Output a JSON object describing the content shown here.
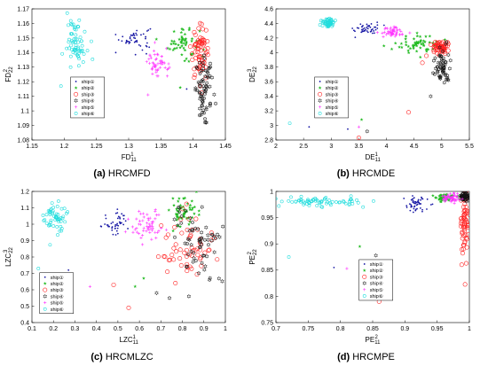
{
  "series_styles": [
    {
      "name": "ship①",
      "color": "#1a1aa6",
      "marker": "dot"
    },
    {
      "name": "ship②",
      "color": "#22bb22",
      "marker": "star"
    },
    {
      "name": "ship③",
      "color": "#ff2222",
      "marker": "circle"
    },
    {
      "name": "ship④",
      "color": "#111111",
      "marker": "hexagram"
    },
    {
      "name": "ship⑤",
      "color": "#ff33ff",
      "marker": "plus"
    },
    {
      "name": "ship⑥",
      "color": "#22dddd",
      "marker": "circle-small"
    }
  ],
  "chart_data": [
    {
      "type": "scatter",
      "caption_letter": "(a)",
      "caption_name": "HRCMFD",
      "xlabel": "FD",
      "xlabel_sub": "11",
      "xlabel_sup": "1",
      "ylabel": "FD",
      "ylabel_sub": "22",
      "ylabel_sup": "2",
      "xlim": [
        1.15,
        1.45
      ],
      "ylim": [
        1.08,
        1.17
      ],
      "xticks": [
        "1.15",
        "1.2",
        "1.25",
        "1.3",
        "1.35",
        "1.4",
        "1.45"
      ],
      "yticks": [
        "1.08",
        "1.09",
        "1.1",
        "1.11",
        "1.12",
        "1.13",
        "1.14",
        "1.15",
        "1.16",
        "1.17"
      ],
      "legend_position": "center-left",
      "clusters": [
        {
          "series": "ship①",
          "cx": 1.31,
          "cy": 1.15,
          "sx": 0.012,
          "sy": 0.004,
          "n": 45,
          "outliers": [
            [
              1.28,
              1.14
            ],
            [
              1.39,
              1.115
            ]
          ]
        },
        {
          "series": "ship②",
          "cx": 1.385,
          "cy": 1.147,
          "sx": 0.012,
          "sy": 0.006,
          "n": 55,
          "outliers": [
            [
              1.38,
              1.116
            ]
          ]
        },
        {
          "series": "ship③",
          "cx": 1.41,
          "cy": 1.14,
          "sx": 0.007,
          "sy": 0.009,
          "n": 70,
          "outliers": []
        },
        {
          "series": "ship④",
          "cx": 1.418,
          "cy": 1.115,
          "sx": 0.007,
          "sy": 0.01,
          "n": 70,
          "outliers": [
            [
              1.42,
              1.092
            ],
            [
              1.435,
              1.105
            ],
            [
              1.41,
              1.097
            ]
          ]
        },
        {
          "series": "ship⑤",
          "cx": 1.345,
          "cy": 1.132,
          "sx": 0.008,
          "sy": 0.005,
          "n": 50,
          "outliers": [
            [
              1.33,
              1.111
            ]
          ]
        },
        {
          "series": "ship⑥",
          "cx": 1.22,
          "cy": 1.148,
          "sx": 0.008,
          "sy": 0.007,
          "n": 65,
          "outliers": [
            [
              1.195,
              1.117
            ],
            [
              1.21,
              1.13
            ]
          ]
        }
      ]
    },
    {
      "type": "scatter",
      "caption_letter": "(b)",
      "caption_name": "HRCMDE",
      "xlabel": "DE",
      "xlabel_sub": "11",
      "xlabel_sup": "1",
      "ylabel": "DE",
      "ylabel_sub": "22",
      "ylabel_sup": "3",
      "xlim": [
        2,
        5.5
      ],
      "ylim": [
        2.8,
        4.6
      ],
      "xticks": [
        "2",
        "2.5",
        "3",
        "3.5",
        "4",
        "4.5",
        "5",
        "5.5"
      ],
      "yticks": [
        "2.8",
        "3",
        "3.2",
        "3.4",
        "3.6",
        "3.8",
        "4",
        "4.2",
        "4.4",
        "4.6"
      ],
      "legend_position": "center-left",
      "clusters": [
        {
          "series": "ship①",
          "cx": 3.65,
          "cy": 4.33,
          "sx": 0.12,
          "sy": 0.04,
          "n": 45,
          "outliers": [
            [
              2.6,
              2.98
            ],
            [
              3.3,
              2.95
            ]
          ]
        },
        {
          "series": "ship②",
          "cx": 4.55,
          "cy": 4.12,
          "sx": 0.18,
          "sy": 0.07,
          "n": 55,
          "outliers": [
            [
              3.55,
              3.08
            ]
          ]
        },
        {
          "series": "ship③",
          "cx": 4.98,
          "cy": 4.07,
          "sx": 0.08,
          "sy": 0.05,
          "n": 60,
          "outliers": [
            [
              3.5,
              2.83
            ],
            [
              4.4,
              3.18
            ],
            [
              4.65,
              3.86
            ]
          ]
        },
        {
          "series": "ship④",
          "cx": 5.0,
          "cy": 3.82,
          "sx": 0.07,
          "sy": 0.12,
          "n": 60,
          "outliers": [
            [
              3.65,
              2.92
            ],
            [
              4.8,
              3.4
            ]
          ]
        },
        {
          "series": "ship⑤",
          "cx": 4.1,
          "cy": 4.28,
          "sx": 0.12,
          "sy": 0.04,
          "n": 50,
          "outliers": [
            [
              3.5,
              2.98
            ]
          ]
        },
        {
          "series": "ship⑥",
          "cx": 2.95,
          "cy": 4.41,
          "sx": 0.05,
          "sy": 0.03,
          "n": 60,
          "outliers": [
            [
              2.25,
              3.03
            ]
          ]
        }
      ]
    },
    {
      "type": "scatter",
      "caption_letter": "(c)",
      "caption_name": "HRCMLZC",
      "xlabel": "LZC",
      "xlabel_sub": "11",
      "xlabel_sup": "1",
      "ylabel": "LZC",
      "ylabel_sub": "22",
      "ylabel_sup": "3",
      "xlim": [
        0.1,
        1.0
      ],
      "ylim": [
        0.4,
        1.2
      ],
      "xticks": [
        "0.1",
        "0.2",
        "0.3",
        "0.4",
        "0.5",
        "0.6",
        "0.7",
        "0.8",
        "0.9",
        "1"
      ],
      "yticks": [
        "0.4",
        "0.5",
        "0.6",
        "0.7",
        "0.8",
        "0.9",
        "1",
        "1.1",
        "1.2"
      ],
      "legend_position": "bottom-left",
      "clusters": [
        {
          "series": "ship①",
          "cx": 0.5,
          "cy": 1.01,
          "sx": 0.04,
          "sy": 0.04,
          "n": 45,
          "outliers": [
            [
              0.27,
              0.72
            ]
          ]
        },
        {
          "series": "ship②",
          "cx": 0.8,
          "cy": 1.07,
          "sx": 0.035,
          "sy": 0.05,
          "n": 55,
          "outliers": [
            [
              0.58,
              0.62
            ],
            [
              0.62,
              0.67
            ]
          ]
        },
        {
          "series": "ship③",
          "cx": 0.83,
          "cy": 0.86,
          "sx": 0.06,
          "sy": 0.1,
          "n": 60,
          "outliers": [
            [
              0.55,
              0.49
            ],
            [
              0.48,
              0.63
            ],
            [
              0.73,
              0.71
            ]
          ]
        },
        {
          "series": "ship④",
          "cx": 0.87,
          "cy": 0.87,
          "sx": 0.06,
          "sy": 0.12,
          "n": 65,
          "outliers": [
            [
              0.83,
              0.56
            ],
            [
              0.74,
              0.55
            ],
            [
              0.68,
              0.58
            ]
          ]
        },
        {
          "series": "ship⑤",
          "cx": 0.64,
          "cy": 0.99,
          "sx": 0.04,
          "sy": 0.05,
          "n": 55,
          "outliers": [
            [
              0.37,
              0.62
            ]
          ]
        },
        {
          "series": "ship⑥",
          "cx": 0.21,
          "cy": 1.04,
          "sx": 0.025,
          "sy": 0.05,
          "n": 55,
          "outliers": [
            [
              0.13,
              0.73
            ]
          ]
        }
      ]
    },
    {
      "type": "scatter",
      "caption_letter": "(d)",
      "caption_name": "HRCMPE",
      "xlabel": "PE",
      "xlabel_sub": "11",
      "xlabel_sup": "2",
      "ylabel": "PE",
      "ylabel_sub": "22",
      "ylabel_sup": "2",
      "xlim": [
        0.7,
        1.0
      ],
      "ylim": [
        0.75,
        1.0
      ],
      "xticks": [
        "0.7",
        "0.75",
        "0.8",
        "0.85",
        "0.9",
        "0.95",
        "1"
      ],
      "yticks": [
        "0.75",
        "0.8",
        "0.85",
        "0.9",
        "0.95",
        "1"
      ],
      "legend_position": "center",
      "clusters": [
        {
          "series": "ship①",
          "cx": 0.915,
          "cy": 0.975,
          "sx": 0.01,
          "sy": 0.008,
          "n": 50,
          "outliers": [
            [
              0.79,
              0.855
            ]
          ]
        },
        {
          "series": "ship②",
          "cx": 0.962,
          "cy": 0.988,
          "sx": 0.008,
          "sy": 0.004,
          "n": 50,
          "outliers": [
            [
              0.83,
              0.895
            ]
          ]
        },
        {
          "series": "ship③",
          "cx": 0.993,
          "cy": 0.94,
          "sx": 0.003,
          "sy": 0.035,
          "n": 70,
          "outliers": [
            [
              0.86,
              0.79
            ]
          ]
        },
        {
          "series": "ship④",
          "cx": 0.993,
          "cy": 0.99,
          "sx": 0.004,
          "sy": 0.004,
          "n": 60,
          "outliers": [
            [
              0.855,
              0.878
            ]
          ]
        },
        {
          "series": "ship⑤",
          "cx": 0.972,
          "cy": 0.988,
          "sx": 0.008,
          "sy": 0.005,
          "n": 50,
          "outliers": [
            [
              0.81,
              0.853
            ]
          ]
        },
        {
          "series": "ship⑥",
          "cx": 0.77,
          "cy": 0.98,
          "sx": 0.035,
          "sy": 0.005,
          "n": 70,
          "outliers": [
            [
              0.72,
              0.875
            ]
          ]
        }
      ]
    }
  ]
}
